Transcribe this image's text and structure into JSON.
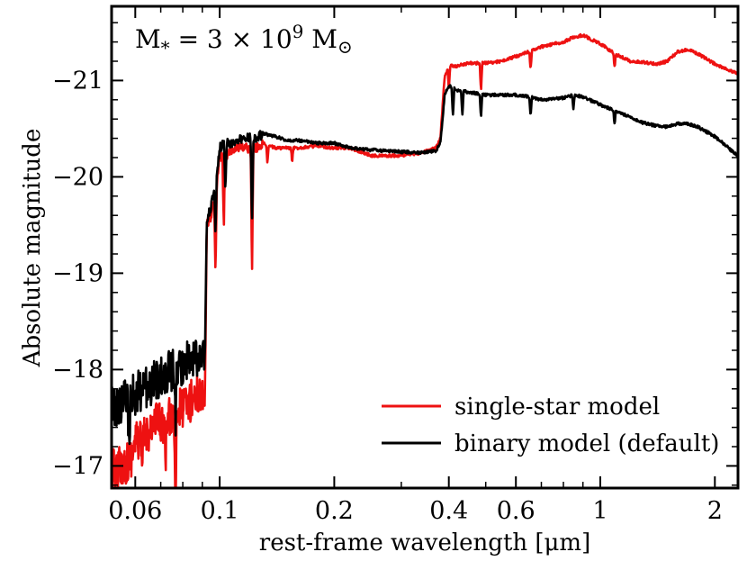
{
  "chart_data": {
    "type": "line",
    "annotation": {
      "prefix": "M",
      "sub": "*",
      "eq": " = 3 × 10",
      "sup": "9",
      "unit": " M",
      "unit_sub": "⊙"
    },
    "xlabel": "rest-frame wavelength [μm]",
    "ylabel": "Absolute magnitude",
    "x_scale": "log",
    "xlim": [
      0.052,
      2.3
    ],
    "ylim": [
      -16.77,
      -21.77
    ],
    "y_inverted": true,
    "x_ticks": [
      {
        "value": 0.06,
        "label": "0.06"
      },
      {
        "value": 0.1,
        "label": "0.1"
      },
      {
        "value": 0.2,
        "label": "0.2"
      },
      {
        "value": 0.4,
        "label": "0.4"
      },
      {
        "value": 0.6,
        "label": "0.6"
      },
      {
        "value": 1,
        "label": "1"
      },
      {
        "value": 2,
        "label": "2"
      }
    ],
    "y_ticks": [
      {
        "value": -17,
        "label": "−17"
      },
      {
        "value": -18,
        "label": "−18"
      },
      {
        "value": -19,
        "label": "−19"
      },
      {
        "value": -20,
        "label": "−20"
      },
      {
        "value": -21,
        "label": "−21"
      }
    ],
    "legend_position": "lower-right",
    "series": [
      {
        "name": "single-star model",
        "color": "#ee1111",
        "x": [
          0.052,
          0.055,
          0.058,
          0.06,
          0.063,
          0.066,
          0.069,
          0.072,
          0.076,
          0.08,
          0.085,
          0.089,
          0.0915,
          0.0925,
          0.095,
          0.098,
          0.1,
          0.103,
          0.107,
          0.11,
          0.115,
          0.12,
          0.125,
          0.13,
          0.14,
          0.15,
          0.16,
          0.18,
          0.2,
          0.22,
          0.25,
          0.3,
          0.34,
          0.37,
          0.38,
          0.39,
          0.4,
          0.42,
          0.45,
          0.5,
          0.55,
          0.6,
          0.65,
          0.7,
          0.8,
          0.85,
          0.9,
          1.0,
          1.1,
          1.2,
          1.3,
          1.4,
          1.5,
          1.6,
          1.7,
          1.8,
          2.0,
          2.2,
          2.3
        ],
        "y": [
          -16.95,
          -17.0,
          -17.05,
          -17.25,
          -17.3,
          -17.4,
          -17.45,
          -17.45,
          -17.55,
          -17.6,
          -17.7,
          -17.75,
          -17.8,
          -19.5,
          -19.6,
          -19.9,
          -20.2,
          -20.22,
          -20.25,
          -20.3,
          -20.3,
          -20.3,
          -20.3,
          -20.35,
          -20.3,
          -20.3,
          -20.3,
          -20.32,
          -20.3,
          -20.3,
          -20.22,
          -20.22,
          -20.25,
          -20.3,
          -20.4,
          -21.05,
          -21.15,
          -21.15,
          -21.18,
          -21.18,
          -21.2,
          -21.25,
          -21.3,
          -21.35,
          -21.4,
          -21.45,
          -21.47,
          -21.38,
          -21.27,
          -21.2,
          -21.19,
          -21.17,
          -21.2,
          -21.3,
          -21.32,
          -21.28,
          -21.17,
          -21.1,
          -21.07
        ]
      },
      {
        "name": "binary model (default)",
        "color": "#000000",
        "x": [
          0.052,
          0.055,
          0.058,
          0.06,
          0.063,
          0.066,
          0.069,
          0.072,
          0.076,
          0.08,
          0.085,
          0.089,
          0.0915,
          0.0925,
          0.095,
          0.098,
          0.1,
          0.103,
          0.107,
          0.11,
          0.115,
          0.12,
          0.125,
          0.13,
          0.14,
          0.15,
          0.16,
          0.18,
          0.2,
          0.22,
          0.25,
          0.3,
          0.34,
          0.37,
          0.38,
          0.39,
          0.4,
          0.42,
          0.45,
          0.5,
          0.55,
          0.6,
          0.65,
          0.7,
          0.8,
          0.85,
          0.9,
          1.0,
          1.1,
          1.2,
          1.3,
          1.4,
          1.5,
          1.6,
          1.7,
          1.8,
          2.0,
          2.2,
          2.3
        ],
        "y": [
          -17.6,
          -17.65,
          -17.7,
          -17.75,
          -17.8,
          -17.85,
          -17.9,
          -17.95,
          -18.0,
          -18.05,
          -18.1,
          -18.15,
          -18.2,
          -19.55,
          -19.7,
          -20.0,
          -20.3,
          -20.35,
          -20.35,
          -20.35,
          -20.4,
          -20.4,
          -20.4,
          -20.45,
          -20.42,
          -20.38,
          -20.38,
          -20.35,
          -20.35,
          -20.3,
          -20.28,
          -20.26,
          -20.25,
          -20.27,
          -20.35,
          -20.85,
          -20.95,
          -20.9,
          -20.88,
          -20.85,
          -20.85,
          -20.85,
          -20.83,
          -20.8,
          -20.82,
          -20.85,
          -20.83,
          -20.75,
          -20.68,
          -20.62,
          -20.56,
          -20.53,
          -20.52,
          -20.55,
          -20.55,
          -20.52,
          -20.42,
          -20.28,
          -20.22
        ]
      }
    ],
    "absorption_lines": [
      {
        "x": 0.0578,
        "depth": 0.6,
        "series": 1
      },
      {
        "x": 0.0625,
        "depth": 0.45,
        "series": 0
      },
      {
        "x": 0.072,
        "depth": 0.5,
        "series": 0
      },
      {
        "x": 0.0765,
        "depth": 0.9,
        "series": 0
      },
      {
        "x": 0.0765,
        "depth": 0.55,
        "series": 1
      },
      {
        "x": 0.0975,
        "depth": 0.9,
        "series": 0
      },
      {
        "x": 0.0975,
        "depth": 0.6,
        "series": 1
      },
      {
        "x": 0.1025,
        "depth": 0.75,
        "series": 0
      },
      {
        "x": 0.1035,
        "depth": 0.55,
        "series": 1
      },
      {
        "x": 0.1216,
        "depth": 1.3,
        "series": 0
      },
      {
        "x": 0.1216,
        "depth": 0.9,
        "series": 1
      },
      {
        "x": 0.1335,
        "depth": 0.2,
        "series": 0
      },
      {
        "x": 0.155,
        "depth": 0.15,
        "series": 0
      },
      {
        "x": 0.4,
        "depth": 0.25,
        "series": 0
      },
      {
        "x": 0.41,
        "depth": 0.3,
        "series": 1
      },
      {
        "x": 0.434,
        "depth": 0.25,
        "series": 1
      },
      {
        "x": 0.486,
        "depth": 0.3,
        "series": 0
      },
      {
        "x": 0.486,
        "depth": 0.25,
        "series": 1
      },
      {
        "x": 0.656,
        "depth": 0.2,
        "series": 0
      },
      {
        "x": 0.656,
        "depth": 0.2,
        "series": 1
      },
      {
        "x": 0.85,
        "depth": 0.15,
        "series": 1
      },
      {
        "x": 1.09,
        "depth": 0.15,
        "series": 0
      },
      {
        "x": 1.09,
        "depth": 0.15,
        "series": 1
      }
    ]
  }
}
